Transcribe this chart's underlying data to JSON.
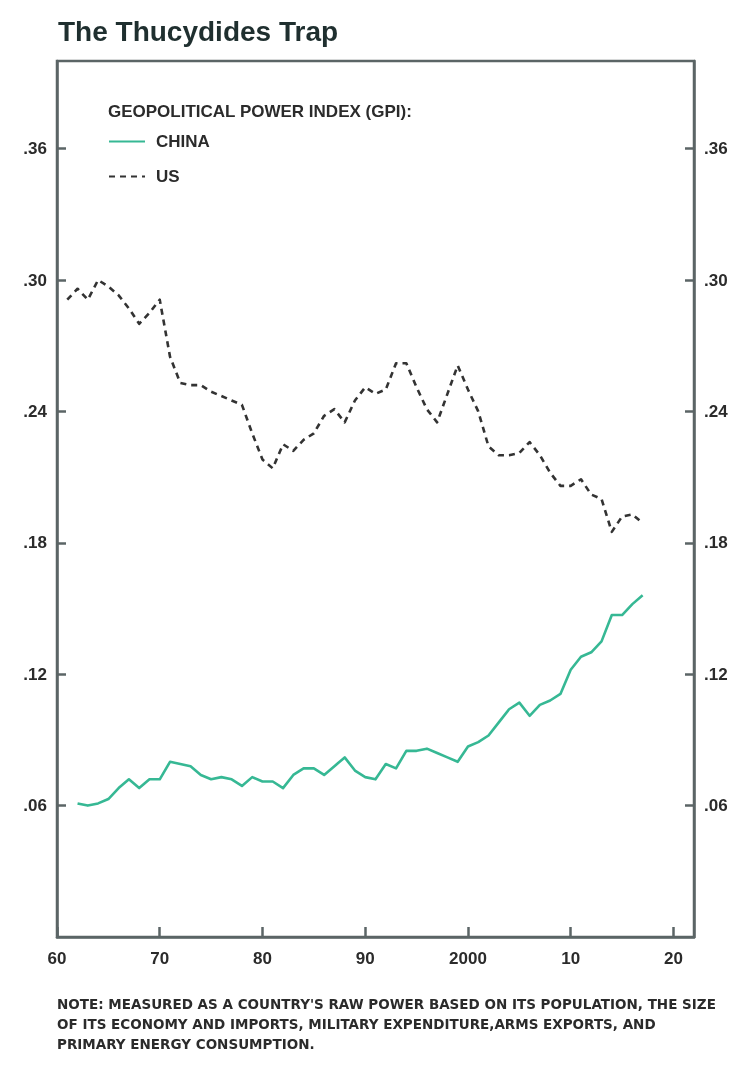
{
  "chart_data": {
    "type": "line",
    "title": "The Thucydides Trap",
    "legend_title": "GEOPOLITICAL POWER INDEX (GPI):",
    "legend": "top left",
    "xlim": [
      1960,
      2022
    ],
    "xticks": [
      {
        "value": 1960,
        "label": "60"
      },
      {
        "value": 1970,
        "label": "70"
      },
      {
        "value": 1980,
        "label": "80"
      },
      {
        "value": 1990,
        "label": "90"
      },
      2000,
      {
        "value": 2010,
        "label": "10"
      },
      {
        "value": 2020,
        "label": "20"
      }
    ],
    "ylim": [
      0,
      0.4
    ],
    "yticks": [
      {
        "value": 0.06,
        "label": ".06"
      },
      {
        "value": 0.12,
        "label": ".12"
      },
      {
        "value": 0.18,
        "label": ".18"
      },
      {
        "value": 0.24,
        "label": ".24"
      },
      {
        "value": 0.3,
        "label": ".30"
      },
      {
        "value": 0.36,
        "label": ".36"
      }
    ],
    "y2lim": [
      0,
      0.4
    ],
    "y2ticks": [
      {
        "value": 0.06,
        "label": ".06"
      },
      {
        "value": 0.12,
        "label": ".12"
      },
      {
        "value": 0.18,
        "label": ".18"
      },
      {
        "value": 0.24,
        "label": ".24"
      },
      {
        "value": 0.3,
        "label": ".30"
      },
      {
        "value": 0.36,
        "label": ".36"
      }
    ],
    "series": [
      {
        "name": "CHINA",
        "color": "#36b894",
        "line_style": "solid",
        "x": [
          1962,
          1963,
          1964,
          1965,
          1966,
          1967,
          1968,
          1969,
          1970,
          1971,
          1972,
          1973,
          1974,
          1975,
          1976,
          1977,
          1978,
          1979,
          1980,
          1981,
          1982,
          1983,
          1984,
          1985,
          1986,
          1987,
          1988,
          1989,
          1990,
          1991,
          1992,
          1993,
          1994,
          1995,
          1996,
          1997,
          1998,
          1999,
          2000,
          2001,
          2002,
          2003,
          2004,
          2005,
          2006,
          2007,
          2008,
          2009,
          2010,
          2011,
          2012,
          2013,
          2014,
          2015,
          2016,
          2017
        ],
        "values": [
          0.061,
          0.06,
          0.061,
          0.063,
          0.068,
          0.072,
          0.068,
          0.072,
          0.072,
          0.08,
          0.079,
          0.078,
          0.074,
          0.072,
          0.073,
          0.072,
          0.069,
          0.073,
          0.071,
          0.071,
          0.068,
          0.074,
          0.077,
          0.077,
          0.074,
          0.078,
          0.082,
          0.076,
          0.073,
          0.072,
          0.079,
          0.077,
          0.085,
          0.085,
          0.086,
          0.084,
          0.082,
          0.08,
          0.087,
          0.089,
          0.092,
          0.098,
          0.104,
          0.107,
          0.101,
          0.106,
          0.108,
          0.111,
          0.122,
          0.128,
          0.13,
          0.135,
          0.147,
          0.147,
          0.152,
          0.156
        ]
      },
      {
        "name": "US",
        "color": "#333333",
        "line_style": "dashed",
        "x": [
          1961,
          1962,
          1963,
          1964,
          1965,
          1966,
          1967,
          1968,
          1969,
          1970,
          1971,
          1972,
          1973,
          1974,
          1975,
          1976,
          1977,
          1978,
          1979,
          1980,
          1981,
          1982,
          1983,
          1984,
          1985,
          1986,
          1987,
          1988,
          1989,
          1990,
          1991,
          1992,
          1993,
          1994,
          1995,
          1996,
          1997,
          1998,
          1999,
          2000,
          2001,
          2002,
          2003,
          2004,
          2005,
          2006,
          2007,
          2008,
          2009,
          2010,
          2011,
          2012,
          2013,
          2014,
          2015,
          2016,
          2017
        ],
        "values": [
          0.291,
          0.296,
          0.291,
          0.3,
          0.297,
          0.293,
          0.287,
          0.28,
          0.285,
          0.291,
          0.265,
          0.253,
          0.252,
          0.252,
          0.249,
          0.247,
          0.245,
          0.243,
          0.23,
          0.218,
          0.214,
          0.225,
          0.222,
          0.227,
          0.23,
          0.238,
          0.241,
          0.235,
          0.245,
          0.251,
          0.248,
          0.25,
          0.262,
          0.262,
          0.251,
          0.241,
          0.235,
          0.248,
          0.261,
          0.25,
          0.24,
          0.224,
          0.22,
          0.22,
          0.221,
          0.226,
          0.22,
          0.212,
          0.206,
          0.206,
          0.209,
          0.202,
          0.2,
          0.185,
          0.192,
          0.193,
          0.189
        ]
      }
    ],
    "annotations": [
      "NOTE: MEASURED AS A COUNTRY'S RAW POWER BASED ON ITS POPULATION, THE SIZE OF ITS ECONOMY AND IMPORTS, MILITARY EXPENDITURE,ARMS EXPORTS, AND PRIMARY ENERGY CONSUMPTION."
    ]
  }
}
